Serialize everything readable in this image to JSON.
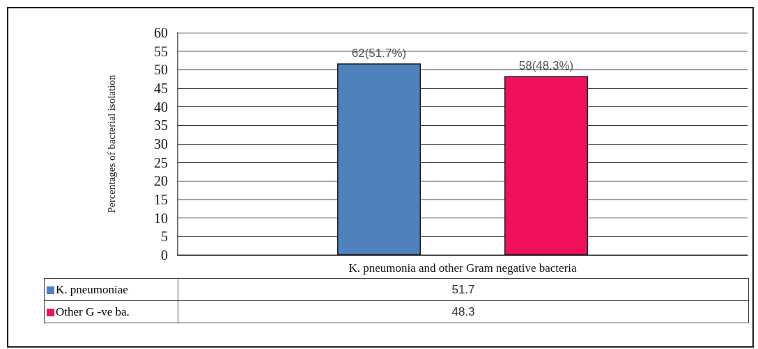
{
  "chart_data": {
    "type": "bar",
    "ylabel": "Percentages of bacterial isolation",
    "categories": [
      "K. pneumonia and other Gram negative bacteria"
    ],
    "series": [
      {
        "name": "K. pneumoniae",
        "color": "#4f81bd",
        "values": [
          51.7
        ],
        "value_labels": [
          "62(51.7%)"
        ]
      },
      {
        "name": "Other G -ve ba.",
        "color": "#f0105c",
        "values": [
          48.3
        ],
        "value_labels": [
          "58(48.3%)"
        ]
      }
    ],
    "annotations": [
      "51.7",
      "48.3"
    ],
    "ylim": [
      0,
      60
    ],
    "yticks": [
      0,
      5,
      10,
      15,
      20,
      25,
      30,
      35,
      40,
      45,
      50,
      55,
      60
    ],
    "grid": "y",
    "legend": "bottom left"
  }
}
